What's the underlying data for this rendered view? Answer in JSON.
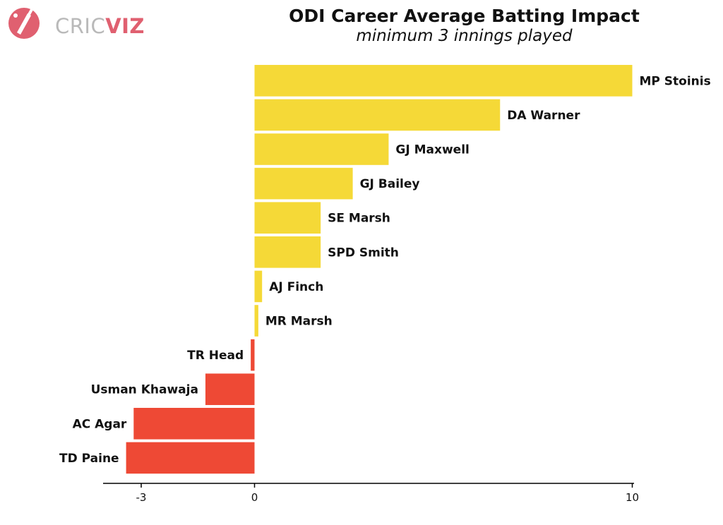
{
  "branding": {
    "logo_part1": "CRIC",
    "logo_part2": "VIZ",
    "logo_icon": "cricket-bat-ball-icon"
  },
  "colors": {
    "positive": "#f5d937",
    "negative": "#ee4935",
    "axis": "#000000",
    "logo_accent": "#e06070",
    "logo_grey": "#b9b9b9"
  },
  "chart_data": {
    "type": "bar",
    "orientation": "horizontal",
    "title": "ODI Career Average Batting Impact",
    "subtitle": "minimum 3 innings played",
    "categories": [
      "MP Stoinis",
      "DA Warner",
      "GJ Maxwell",
      "GJ Bailey",
      "SE Marsh",
      "SPD Smith",
      "AJ Finch",
      "MR Marsh",
      "TR Head",
      "Usman Khawaja",
      "AC Agar",
      "TD Paine"
    ],
    "values": [
      10.0,
      6.5,
      3.55,
      2.6,
      1.75,
      1.75,
      0.2,
      0.1,
      -0.1,
      -1.3,
      -3.2,
      -3.4
    ],
    "xlim": [
      -4,
      10
    ],
    "xticks": [
      -3,
      0,
      10
    ],
    "xtick_labels": [
      "-3",
      "0",
      "10"
    ],
    "grid": false,
    "legend": "none"
  }
}
